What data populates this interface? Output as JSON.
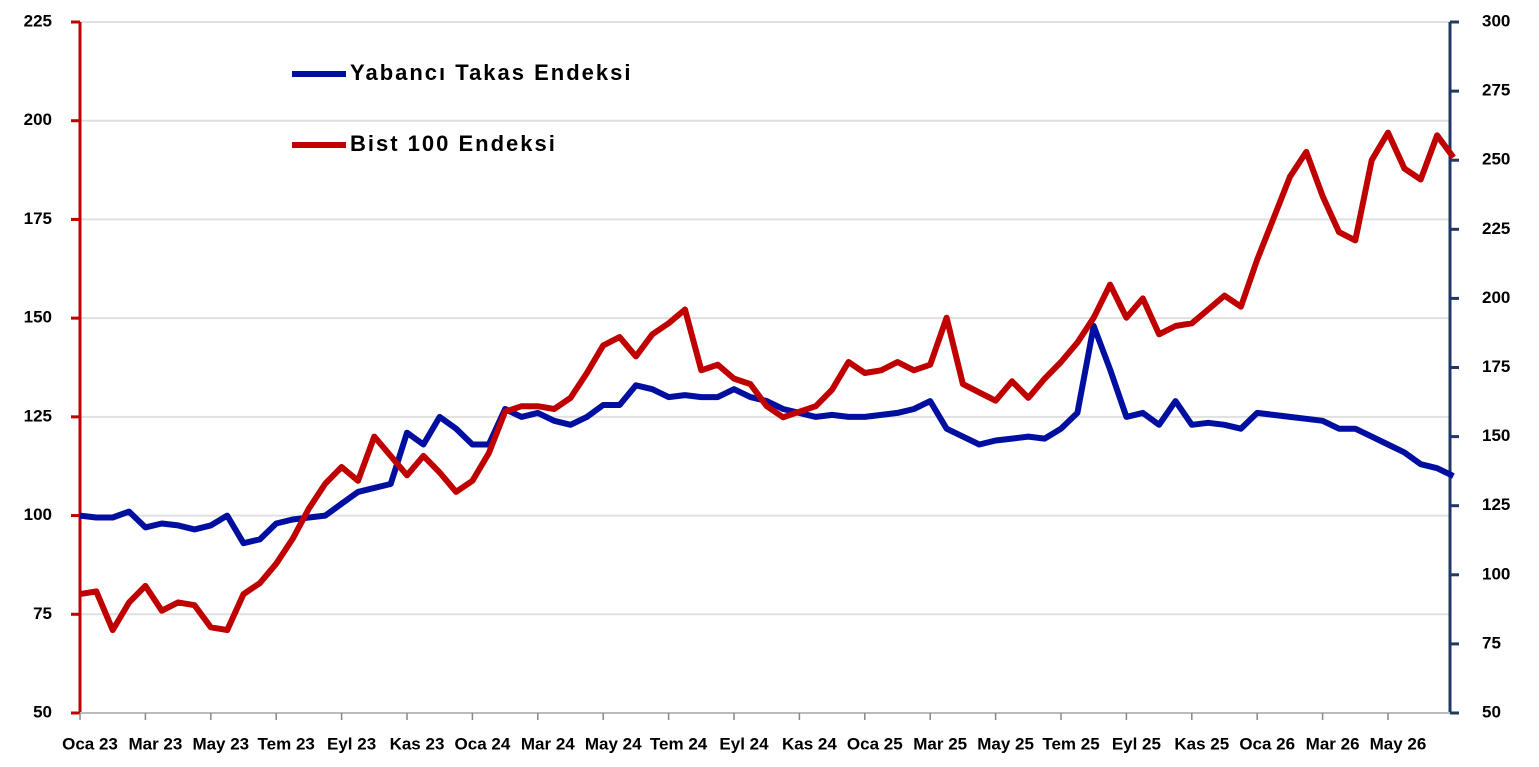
{
  "chart_data": {
    "type": "line",
    "categories": [
      "Oca 23",
      null,
      null,
      null,
      "Mar 23",
      null,
      null,
      null,
      "May 23",
      null,
      null,
      null,
      "Tem 23",
      null,
      null,
      null,
      "Eyl 23",
      null,
      null,
      null,
      "Kas 23",
      null,
      null,
      null,
      "Oca 24",
      null,
      null,
      null,
      "Mar 24",
      null,
      null,
      null,
      "May 24",
      null,
      null,
      null,
      "Tem 24",
      null,
      null,
      null,
      "Eyl 24",
      null,
      null,
      null,
      "Kas 24",
      null,
      null,
      null,
      "Oca 25",
      null,
      null,
      null,
      "Mar 25",
      null,
      null,
      null,
      "May 25",
      null,
      null,
      null,
      "Tem 25",
      null,
      null,
      null,
      "Eyl 25",
      null,
      null,
      null,
      "Kas 25",
      null,
      null,
      null,
      "Oca 26",
      null,
      null,
      null,
      "Mar 26",
      null,
      null,
      null,
      "May 26",
      null,
      null,
      null,
      null
    ],
    "series": [
      {
        "name": "Yabancı Takas Endeksi",
        "color": "#000f9f",
        "axis": "y",
        "values": [
          100,
          99.5,
          99.5,
          101,
          97,
          98,
          97.5,
          96.5,
          97.5,
          100,
          93,
          94,
          98,
          99,
          99.5,
          100,
          103,
          106,
          107,
          108,
          121,
          118,
          125,
          122,
          118,
          118,
          127,
          125,
          126,
          124,
          123,
          125,
          128,
          128,
          133,
          132,
          130,
          130.5,
          130,
          130,
          132,
          130,
          129,
          127,
          126,
          125,
          125.5,
          125,
          125,
          125.5,
          126,
          127,
          129,
          122,
          120,
          118,
          119,
          119.5,
          120,
          119.5,
          122,
          126,
          148,
          137,
          125,
          126,
          123,
          129,
          123,
          123.5,
          123,
          122,
          126,
          125.5,
          125,
          124.5,
          124,
          122,
          122,
          120,
          118,
          116,
          113,
          112,
          110
        ]
      },
      {
        "name": "Bist 100 Endeksi",
        "color": "#c00000",
        "axis": "y2",
        "values": [
          93,
          94,
          80,
          90,
          96,
          87,
          90,
          89,
          81,
          80,
          93,
          97,
          104,
          113,
          124,
          133,
          139,
          134,
          150,
          143,
          136,
          143,
          137,
          130,
          134,
          144,
          159,
          161,
          161,
          160,
          164,
          173,
          183,
          186,
          179,
          187,
          191,
          196,
          174,
          176,
          171,
          169,
          161,
          157,
          159,
          161,
          167,
          177,
          173,
          174,
          177,
          174,
          176,
          193,
          169,
          166,
          163,
          170,
          164,
          171,
          177,
          184,
          193,
          205,
          193,
          200,
          187,
          190,
          191,
          196,
          201,
          197,
          214,
          229,
          244,
          253,
          237,
          224,
          221,
          250,
          260,
          247,
          243,
          259,
          251
        ]
      }
    ],
    "ylim": [
      50,
      225
    ],
    "yticks": [
      50,
      75,
      100,
      125,
      150,
      175,
      200,
      225
    ],
    "y2lim": [
      50,
      300
    ],
    "y2ticks": [
      50,
      75,
      100,
      125,
      150,
      175,
      200,
      225,
      250,
      275,
      300
    ],
    "grid": true,
    "legend": "upper-left"
  }
}
